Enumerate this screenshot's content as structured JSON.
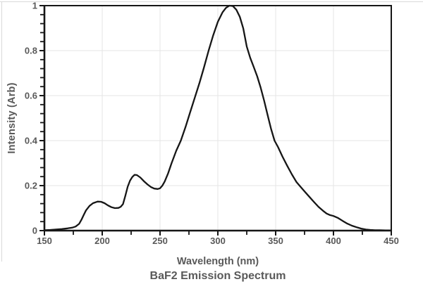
{
  "page": {
    "background": "#ffffff",
    "edge_border_color": "#d9d9d9"
  },
  "chart_data": {
    "type": "line",
    "title": "BaF2 Emission Spectrum",
    "xlabel": "Wavelength (nm)",
    "ylabel": "Intensity (Arb)",
    "xlim": [
      150,
      450
    ],
    "ylim": [
      0,
      1
    ],
    "x_major_ticks": [
      150,
      200,
      250,
      300,
      350,
      400,
      450
    ],
    "x_tick_labels": [
      "150",
      "200",
      "250",
      "300",
      "350",
      "400",
      "450"
    ],
    "x_minor_step": 25,
    "y_major_ticks": [
      0,
      0.2,
      0.4,
      0.6,
      0.8,
      1
    ],
    "y_tick_labels": [
      "0",
      "0.2",
      "0.4",
      "0.6",
      "0.8",
      "1"
    ],
    "y_minor_step": 0.04,
    "grid": true,
    "legend": "none",
    "colors": {
      "line": "#161616",
      "axis": "#161616",
      "grid": "#e4e4e4",
      "text": "#595959"
    },
    "series": [
      {
        "name": "BaF2 emission",
        "points": [
          [
            150,
            0.002
          ],
          [
            155,
            0.003
          ],
          [
            160,
            0.005
          ],
          [
            165,
            0.007
          ],
          [
            170,
            0.01
          ],
          [
            174,
            0.013
          ],
          [
            177,
            0.018
          ],
          [
            180,
            0.03
          ],
          [
            182,
            0.048
          ],
          [
            184,
            0.07
          ],
          [
            186,
            0.09
          ],
          [
            189,
            0.11
          ],
          [
            192,
            0.122
          ],
          [
            196,
            0.129
          ],
          [
            199,
            0.128
          ],
          [
            202,
            0.122
          ],
          [
            205,
            0.112
          ],
          [
            208,
            0.104
          ],
          [
            211,
            0.1
          ],
          [
            214,
            0.101
          ],
          [
            216,
            0.106
          ],
          [
            218,
            0.118
          ],
          [
            220,
            0.155
          ],
          [
            222,
            0.195
          ],
          [
            224,
            0.222
          ],
          [
            226,
            0.238
          ],
          [
            228,
            0.248
          ],
          [
            230,
            0.247
          ],
          [
            233,
            0.236
          ],
          [
            236,
            0.22
          ],
          [
            239,
            0.206
          ],
          [
            242,
            0.194
          ],
          [
            245,
            0.187
          ],
          [
            248,
            0.185
          ],
          [
            250,
            0.188
          ],
          [
            252,
            0.2
          ],
          [
            254,
            0.218
          ],
          [
            257,
            0.255
          ],
          [
            260,
            0.3
          ],
          [
            264,
            0.355
          ],
          [
            268,
            0.4
          ],
          [
            272,
            0.46
          ],
          [
            276,
            0.525
          ],
          [
            280,
            0.59
          ],
          [
            284,
            0.655
          ],
          [
            288,
            0.725
          ],
          [
            292,
            0.8
          ],
          [
            296,
            0.868
          ],
          [
            300,
            0.928
          ],
          [
            304,
            0.97
          ],
          [
            307,
            0.99
          ],
          [
            310,
            1.0
          ],
          [
            313,
            0.998
          ],
          [
            316,
            0.982
          ],
          [
            319,
            0.95
          ],
          [
            322,
            0.898
          ],
          [
            325,
            0.818
          ],
          [
            328,
            0.768
          ],
          [
            331,
            0.728
          ],
          [
            334,
            0.686
          ],
          [
            337,
            0.636
          ],
          [
            340,
            0.578
          ],
          [
            343,
            0.515
          ],
          [
            346,
            0.453
          ],
          [
            349,
            0.4
          ],
          [
            352,
            0.372
          ],
          [
            356,
            0.328
          ],
          [
            360,
            0.288
          ],
          [
            364,
            0.25
          ],
          [
            368,
            0.216
          ],
          [
            371,
            0.198
          ],
          [
            375,
            0.174
          ],
          [
            379,
            0.151
          ],
          [
            383,
            0.128
          ],
          [
            387,
            0.106
          ],
          [
            391,
            0.088
          ],
          [
            394,
            0.076
          ],
          [
            397,
            0.069
          ],
          [
            400,
            0.065
          ],
          [
            404,
            0.056
          ],
          [
            408,
            0.043
          ],
          [
            412,
            0.031
          ],
          [
            416,
            0.022
          ],
          [
            420,
            0.015
          ],
          [
            424,
            0.009
          ],
          [
            428,
            0.005
          ],
          [
            432,
            0.003
          ],
          [
            436,
            0.002
          ],
          [
            440,
            0.002
          ],
          [
            445,
            0.001
          ],
          [
            450,
            0.001
          ]
        ]
      }
    ]
  }
}
